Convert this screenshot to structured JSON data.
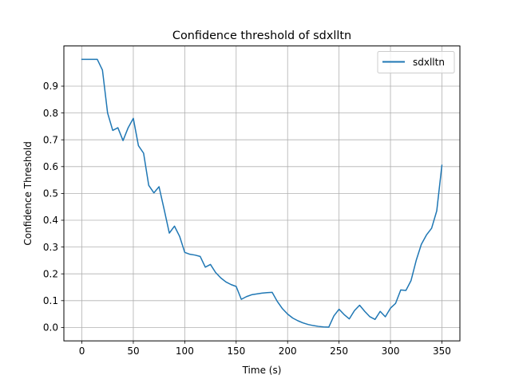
{
  "chart_data": {
    "type": "line",
    "title": "Confidence threshold of sdxlltn",
    "xlabel": "Time (s)",
    "ylabel": "Confidence Threshold",
    "xlim": [
      -17.5,
      367.5
    ],
    "ylim": [
      -0.05,
      1.05
    ],
    "xticks": [
      0,
      50,
      100,
      150,
      200,
      250,
      300,
      350
    ],
    "yticks": [
      0.0,
      0.1,
      0.2,
      0.3,
      0.4,
      0.5,
      0.6,
      0.7,
      0.8,
      0.9
    ],
    "ytick_labels": [
      "0.0",
      "0.1",
      "0.2",
      "0.3",
      "0.4",
      "0.5",
      "0.6",
      "0.7",
      "0.8",
      "0.9"
    ],
    "grid": true,
    "legend_position": "top-right",
    "series": [
      {
        "name": "sdxlltn",
        "color": "#1f77b4",
        "x": [
          0,
          5,
          10,
          15,
          20,
          25,
          30,
          35,
          40,
          45,
          50,
          55,
          60,
          65,
          70,
          75,
          80,
          85,
          90,
          95,
          100,
          105,
          110,
          115,
          120,
          125,
          130,
          135,
          140,
          145,
          150,
          155,
          160,
          165,
          170,
          175,
          180,
          185,
          190,
          195,
          200,
          205,
          210,
          215,
          220,
          225,
          230,
          235,
          240,
          245,
          250,
          255,
          260,
          265,
          270,
          275,
          280,
          285,
          290,
          295,
          300,
          305,
          310,
          315,
          320,
          325,
          330,
          335,
          340,
          345,
          350
        ],
        "y": [
          1.0,
          1.0,
          1.0,
          1.0,
          0.96,
          0.8,
          0.735,
          0.745,
          0.697,
          0.745,
          0.78,
          0.678,
          0.65,
          0.53,
          0.502,
          0.525,
          0.44,
          0.352,
          0.378,
          0.34,
          0.28,
          0.273,
          0.27,
          0.265,
          0.225,
          0.235,
          0.205,
          0.185,
          0.17,
          0.16,
          0.153,
          0.105,
          0.115,
          0.122,
          0.125,
          0.128,
          0.13,
          0.131,
          0.097,
          0.07,
          0.05,
          0.035,
          0.025,
          0.017,
          0.011,
          0.007,
          0.004,
          0.002,
          0.001,
          0.043,
          0.068,
          0.048,
          0.032,
          0.063,
          0.083,
          0.06,
          0.04,
          0.03,
          0.06,
          0.04,
          0.072,
          0.09,
          0.14,
          0.138,
          0.175,
          0.25,
          0.31,
          0.345,
          0.37,
          0.435,
          0.605
        ]
      }
    ]
  }
}
